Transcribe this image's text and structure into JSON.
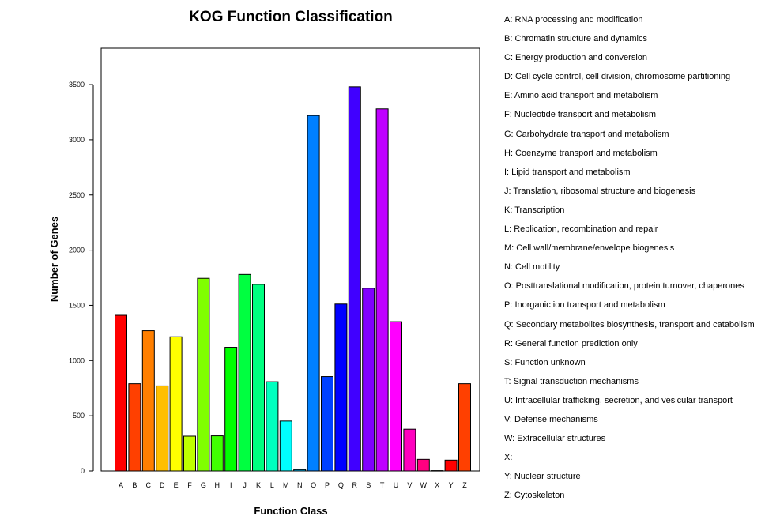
{
  "chart_data": {
    "type": "bar",
    "title": "KOG Function Classification",
    "xlabel": "Function Class",
    "ylabel": "Number of Genes",
    "ylim": [
      0,
      3800
    ],
    "yticks": [
      0,
      500,
      1000,
      1500,
      2000,
      2500,
      3000,
      3500
    ],
    "grid": false,
    "legend_position": "right",
    "categories": [
      "A",
      "B",
      "C",
      "D",
      "E",
      "F",
      "G",
      "H",
      "I",
      "J",
      "K",
      "L",
      "M",
      "N",
      "O",
      "P",
      "Q",
      "R",
      "S",
      "T",
      "U",
      "V",
      "W",
      "X",
      "Y",
      "Z"
    ],
    "values": [
      1410,
      790,
      1270,
      770,
      1215,
      315,
      1745,
      318,
      1120,
      1780,
      1690,
      808,
      452,
      12,
      3220,
      855,
      1512,
      3480,
      1655,
      3280,
      1352,
      378,
      105,
      3,
      98,
      790
    ],
    "colors": [
      "#ff0000",
      "#ff4000",
      "#ff7f00",
      "#ffbf00",
      "#ffff00",
      "#bfff00",
      "#80ff00",
      "#40ff00",
      "#00ff00",
      "#00ff40",
      "#00ff80",
      "#00ffbf",
      "#00ffff",
      "#00bfff",
      "#0080ff",
      "#0040ff",
      "#0000ff",
      "#4000ff",
      "#8000ff",
      "#bf00ff",
      "#ff00ff",
      "#ff00bf",
      "#ff0080",
      "#ff0040",
      "#ff0000",
      "#ff4000"
    ],
    "legend": [
      "A: RNA processing and modification",
      "B: Chromatin structure and dynamics",
      "C: Energy production and conversion",
      "D: Cell cycle control, cell division, chromosome partitioning",
      "E: Amino acid transport and metabolism",
      "F: Nucleotide transport and metabolism",
      "G: Carbohydrate transport and metabolism",
      "H: Coenzyme transport and metabolism",
      "I: Lipid transport and metabolism",
      "J: Translation, ribosomal structure and biogenesis",
      "K: Transcription",
      "L: Replication, recombination and repair",
      "M: Cell wall/membrane/envelope biogenesis",
      "N: Cell motility",
      "O: Posttranslational modification, protein turnover, chaperones",
      "P: Inorganic ion transport and metabolism",
      "Q: Secondary metabolites biosynthesis, transport and catabolism",
      "R: General function prediction only",
      "S: Function unknown",
      "T: Signal transduction mechanisms",
      "U: Intracellular trafficking, secretion, and vesicular transport",
      "V: Defense mechanisms",
      "W: Extracellular structures",
      "X:",
      "Y: Nuclear structure",
      "Z: Cytoskeleton"
    ]
  }
}
